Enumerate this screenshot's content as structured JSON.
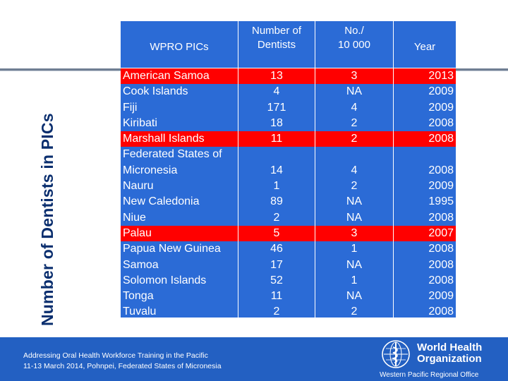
{
  "slide": {
    "vertical_title": "Number of Dentists in PICs"
  },
  "table": {
    "headers": {
      "col1": "WPRO PICs",
      "col2_line1": "Number of",
      "col2_line2": "Dentists",
      "col3_line1": "No./",
      "col3_line2": "10 000",
      "col4": "Year"
    },
    "rows": [
      {
        "country": "American Samoa",
        "dentists": "13",
        "per10000": "3",
        "year": "2013"
      },
      {
        "country": "Cook Islands",
        "dentists": "4",
        "per10000": "NA",
        "year": "2009"
      },
      {
        "country": "Fiji",
        "dentists": "171",
        "per10000": "4",
        "year": "2009"
      },
      {
        "country": "Kiribati",
        "dentists": "18",
        "per10000": "2",
        "year": "2008"
      },
      {
        "country": "Marshall Islands",
        "dentists": "11",
        "per10000": "2",
        "year": "2008"
      },
      {
        "country_line1": "Federated States of",
        "country_line2": "Micronesia",
        "dentists": "14",
        "per10000": "4",
        "year": "2008"
      },
      {
        "country": "Nauru",
        "dentists": "1",
        "per10000": "2",
        "year": "2009"
      },
      {
        "country": "New Caledonia",
        "dentists": "89",
        "per10000": "NA",
        "year": "1995"
      },
      {
        "country": "Niue",
        "dentists": "2",
        "per10000": "NA",
        "year": "2008"
      },
      {
        "country": "Palau",
        "dentists": "5",
        "per10000": "3",
        "year": "2007"
      },
      {
        "country": "Papua New Guinea",
        "dentists": "46",
        "per10000": "1",
        "year": "2008"
      },
      {
        "country": "Samoa",
        "dentists": "17",
        "per10000": "NA",
        "year": "2008"
      },
      {
        "country": "Solomon Islands",
        "dentists": "52",
        "per10000": "1",
        "year": "2008"
      },
      {
        "country": "Tonga",
        "dentists": "11",
        "per10000": "NA",
        "year": "2009"
      },
      {
        "country": "Tuvalu",
        "dentists": "2",
        "per10000": "2",
        "year": "2008"
      }
    ],
    "colors": {
      "header": "#2b6bd6",
      "body": "#2b6bd6",
      "highlight": "#ff0000"
    }
  },
  "footer": {
    "line1": "Addressing Oral Health Workforce Training in the Pacific",
    "line2": "11-13 March 2014, Pohnpei, Federated States of Micronesia",
    "org_line1": "World Health",
    "org_line2": "Organization",
    "region": "Western Pacific Regional Office",
    "logo_icon": "who-emblem-icon"
  }
}
